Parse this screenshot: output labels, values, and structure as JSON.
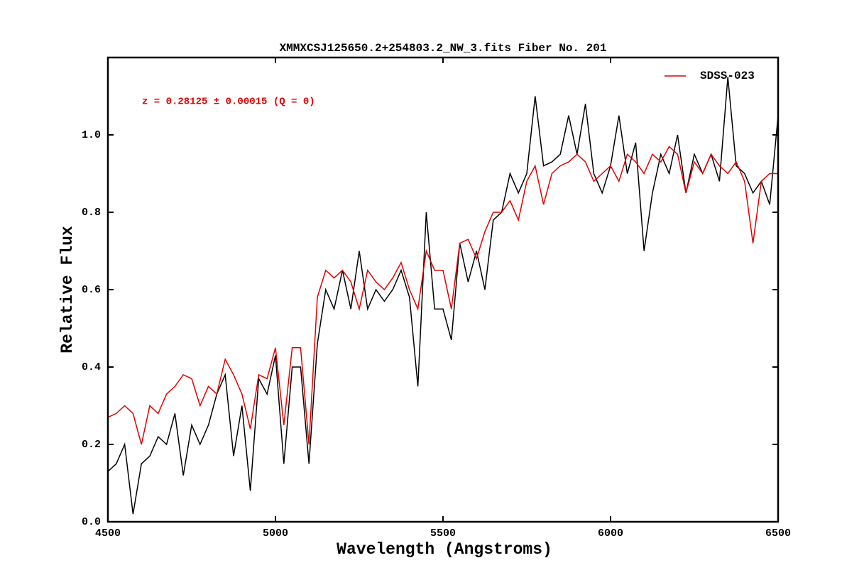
{
  "chart_data": {
    "type": "line",
    "title": "XMMXCSJ125650.2+254803.2_NW_3.fits Fiber No. 201",
    "xlabel": "Wavelength (Angstroms)",
    "ylabel": "Relative Flux",
    "annotation": "z = 0.28125 ± 0.00015 (Q = 0)",
    "annotation_color": "#e00000",
    "legend": "upper right",
    "xlim": [
      4500,
      6500
    ],
    "ylim": [
      0,
      1.2
    ],
    "xticks": [
      4500,
      5000,
      5500,
      6000,
      6500
    ],
    "yticks": [
      {
        "value": 0,
        "label": "0.0"
      },
      {
        "value": 0.2,
        "label": "0.2"
      },
      {
        "value": 0.4,
        "label": "0.4"
      },
      {
        "value": 0.6,
        "label": "0.6"
      },
      {
        "value": 0.8,
        "label": "0.8"
      },
      {
        "value": 1,
        "label": "1.0"
      }
    ],
    "x": [
      4500,
      4525,
      4550,
      4575,
      4600,
      4625,
      4650,
      4675,
      4700,
      4725,
      4750,
      4775,
      4800,
      4825,
      4850,
      4875,
      4900,
      4925,
      4950,
      4975,
      5000,
      5025,
      5050,
      5075,
      5100,
      5125,
      5150,
      5175,
      5200,
      5225,
      5250,
      5275,
      5300,
      5325,
      5350,
      5375,
      5400,
      5425,
      5450,
      5475,
      5500,
      5525,
      5550,
      5575,
      5600,
      5625,
      5650,
      5675,
      5700,
      5725,
      5750,
      5775,
      5800,
      5825,
      5850,
      5875,
      5900,
      5925,
      5950,
      5975,
      6000,
      6025,
      6050,
      6075,
      6100,
      6125,
      6150,
      6175,
      6200,
      6225,
      6250,
      6275,
      6300,
      6325,
      6350,
      6375,
      6400,
      6425,
      6450,
      6475,
      6500
    ],
    "series": [
      {
        "color": "#000000",
        "values": [
          0.13,
          0.15,
          0.2,
          0.02,
          0.15,
          0.17,
          0.22,
          0.2,
          0.28,
          0.12,
          0.25,
          0.2,
          0.25,
          0.33,
          0.38,
          0.17,
          0.3,
          0.08,
          0.37,
          0.33,
          0.43,
          0.15,
          0.4,
          0.4,
          0.15,
          0.46,
          0.6,
          0.55,
          0.65,
          0.55,
          0.7,
          0.55,
          0.6,
          0.57,
          0.6,
          0.65,
          0.58,
          0.35,
          0.8,
          0.55,
          0.55,
          0.47,
          0.72,
          0.62,
          0.7,
          0.6,
          0.78,
          0.8,
          0.9,
          0.85,
          0.9,
          1.1,
          0.92,
          0.93,
          0.95,
          1.05,
          0.95,
          1.08,
          0.9,
          0.85,
          0.92,
          1.05,
          0.9,
          0.98,
          0.7,
          0.85,
          0.95,
          0.9,
          1.0,
          0.85,
          0.95,
          0.9,
          0.95,
          0.88,
          1.15,
          0.92,
          0.9,
          0.85,
          0.88,
          0.82,
          1.05
        ]
      },
      {
        "name": "SDSS-023",
        "color": "#e00000",
        "values": [
          0.27,
          0.28,
          0.3,
          0.28,
          0.2,
          0.3,
          0.28,
          0.33,
          0.35,
          0.38,
          0.37,
          0.3,
          0.35,
          0.33,
          0.42,
          0.38,
          0.33,
          0.24,
          0.38,
          0.37,
          0.45,
          0.25,
          0.45,
          0.45,
          0.2,
          0.58,
          0.65,
          0.63,
          0.65,
          0.62,
          0.55,
          0.65,
          0.62,
          0.6,
          0.63,
          0.67,
          0.6,
          0.55,
          0.7,
          0.65,
          0.65,
          0.55,
          0.72,
          0.73,
          0.68,
          0.75,
          0.8,
          0.8,
          0.83,
          0.78,
          0.88,
          0.92,
          0.82,
          0.9,
          0.92,
          0.93,
          0.95,
          0.93,
          0.88,
          0.9,
          0.92,
          0.88,
          0.95,
          0.93,
          0.9,
          0.95,
          0.93,
          0.97,
          0.95,
          0.85,
          0.93,
          0.9,
          0.95,
          0.92,
          0.9,
          0.93,
          0.88,
          0.72,
          0.88,
          0.9,
          0.9
        ]
      }
    ]
  }
}
